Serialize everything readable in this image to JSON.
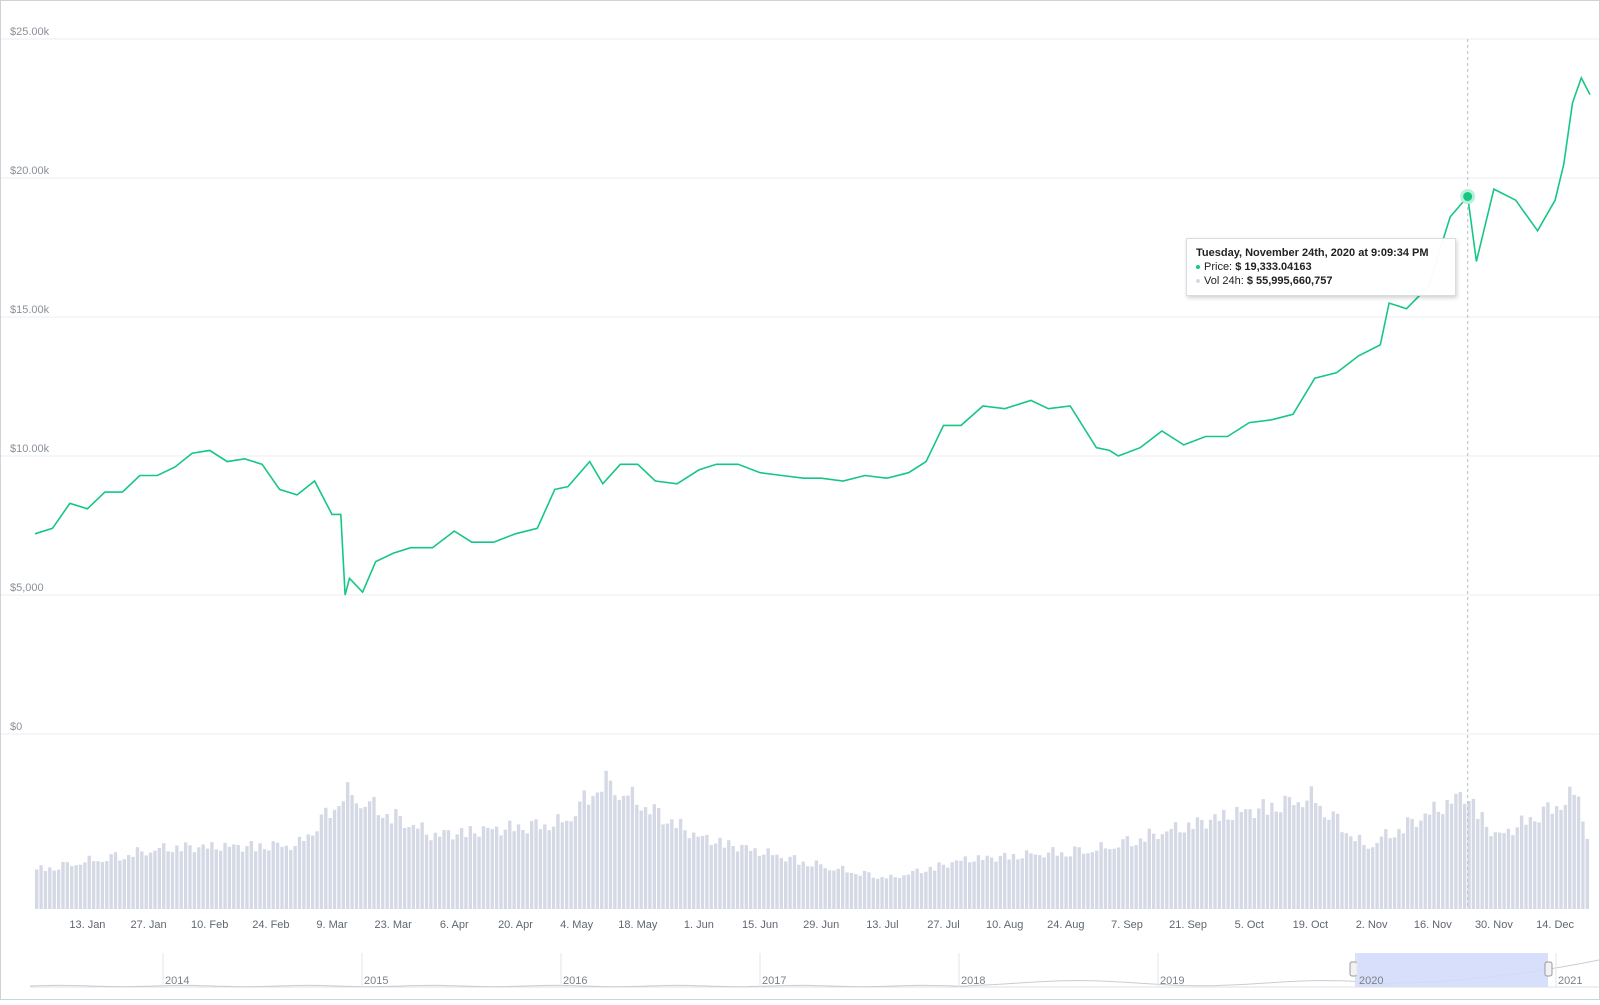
{
  "chart_data": {
    "type": "line",
    "series": [
      {
        "x": [
          "2020-01-01",
          "2020-01-05",
          "2020-01-09",
          "2020-01-13",
          "2020-01-17",
          "2020-01-21",
          "2020-01-25",
          "2020-01-29",
          "2020-02-02",
          "2020-02-06",
          "2020-02-10",
          "2020-02-14",
          "2020-02-18",
          "2020-02-22",
          "2020-02-26",
          "2020-03-01",
          "2020-03-05",
          "2020-03-09",
          "2020-03-11",
          "2020-03-12",
          "2020-03-13",
          "2020-03-16",
          "2020-03-19",
          "2020-03-23",
          "2020-03-27",
          "2020-04-01",
          "2020-04-06",
          "2020-04-10",
          "2020-04-15",
          "2020-04-20",
          "2020-04-25",
          "2020-04-29",
          "2020-05-02",
          "2020-05-07",
          "2020-05-10",
          "2020-05-14",
          "2020-05-18",
          "2020-05-22",
          "2020-05-27",
          "2020-06-01",
          "2020-06-05",
          "2020-06-10",
          "2020-06-15",
          "2020-06-20",
          "2020-06-25",
          "2020-06-29",
          "2020-07-04",
          "2020-07-09",
          "2020-07-14",
          "2020-07-19",
          "2020-07-23",
          "2020-07-27",
          "2020-07-31",
          "2020-08-05",
          "2020-08-10",
          "2020-08-16",
          "2020-08-20",
          "2020-08-25",
          "2020-08-31",
          "2020-09-03",
          "2020-09-05",
          "2020-09-10",
          "2020-09-15",
          "2020-09-20",
          "2020-09-25",
          "2020-09-30",
          "2020-10-05",
          "2020-10-10",
          "2020-10-15",
          "2020-10-20",
          "2020-10-25",
          "2020-10-30",
          "2020-11-04",
          "2020-11-06",
          "2020-11-10",
          "2020-11-15",
          "2020-11-20",
          "2020-11-24",
          "2020-11-26",
          "2020-11-30",
          "2020-12-05",
          "2020-12-10",
          "2020-12-14",
          "2020-12-16",
          "2020-12-18",
          "2020-12-20",
          "2020-12-22"
        ],
        "values": [
          7200,
          7400,
          8300,
          8100,
          8700,
          8700,
          9300,
          9300,
          9600,
          10100,
          10200,
          9800,
          9900,
          9700,
          8800,
          8600,
          9100,
          7900,
          7900,
          5000,
          5600,
          5100,
          6200,
          6500,
          6700,
          6700,
          7300,
          6900,
          6900,
          7200,
          7400,
          8800,
          8900,
          9800,
          9000,
          9700,
          9700,
          9100,
          9000,
          9500,
          9700,
          9700,
          9400,
          9300,
          9200,
          9200,
          9100,
          9300,
          9200,
          9400,
          9800,
          11100,
          11100,
          11800,
          11700,
          12000,
          11700,
          11800,
          10300,
          10200,
          10000,
          10300,
          10900,
          10400,
          10700,
          10700,
          11200,
          11300,
          11500,
          12800,
          13000,
          13600,
          14000,
          15500,
          15300,
          16100,
          18600,
          19333,
          17000,
          19600,
          19200,
          18100,
          19200,
          20500,
          22700,
          23600,
          23000
        ]
      },
      {
        "x": [
          "2020-01-01",
          "2020-02-01",
          "2020-03-01",
          "2020-03-12",
          "2020-04-01",
          "2020-05-01",
          "2020-05-10",
          "2020-06-01",
          "2020-07-01",
          "2020-07-15",
          "2020-08-01",
          "2020-09-01",
          "2020-10-01",
          "2020-10-20",
          "2020-11-01",
          "2020-11-24",
          "2020-12-01",
          "2020-12-20",
          "2020-12-22"
        ],
        "values": [
          19000000000,
          30000000000,
          31000000000,
          56000000000,
          36000000000,
          42000000000,
          62000000000,
          35000000000,
          20000000000,
          15000000000,
          24000000000,
          29000000000,
          46000000000,
          54000000000,
          30000000000,
          55995660757,
          35000000000,
          56000000000,
          36000000000
        ]
      }
    ],
    "x_tick_labels": [
      "13. Jan",
      "27. Jan",
      "10. Feb",
      "24. Feb",
      "9. Mar",
      "23. Mar",
      "6. Apr",
      "20. Apr",
      "4. May",
      "18. May",
      "1. Jun",
      "15. Jun",
      "29. Jun",
      "13. Jul",
      "27. Jul",
      "10. Aug",
      "24. Aug",
      "7. Sep",
      "21. Sep",
      "5. Oct",
      "19. Oct",
      "2. Nov",
      "16. Nov",
      "30. Nov",
      "14. Dec"
    ],
    "y_tick_labels": [
      "$0",
      "$5,000",
      "$10.00k",
      "$15.00k",
      "$20.00k",
      "$25.00k"
    ],
    "ylim": [
      0,
      25000
    ],
    "grid": true,
    "navigator_labels": [
      "2014",
      "2015",
      "2016",
      "2017",
      "2018",
      "2019",
      "2020",
      "2021"
    ],
    "tooltip": {
      "date": "Tuesday, November 24th, 2020 at 9:09:34 PM",
      "price_label": "Price:",
      "price_value": "$ 19,333.04163",
      "vol_label": "Vol 24h:",
      "vol_value": "$ 55,995,660,757"
    },
    "colors": {
      "price": "#16c784",
      "volume": "#d5d9e6",
      "navigator_selection": "#d4dbfb"
    }
  }
}
